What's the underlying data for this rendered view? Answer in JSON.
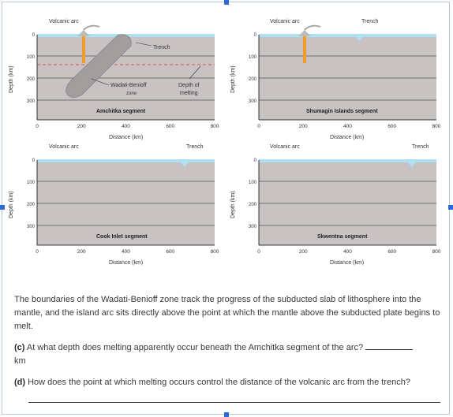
{
  "panels": [
    {
      "volcanic": "Volcanic arc",
      "trench": "Trench",
      "segment": "Amchitka segment",
      "wb_label_1": "Wadati-Benioff",
      "wb_label_2": "zone",
      "dm_label_1": "Depth of",
      "dm_label_2": "melting"
    },
    {
      "volcanic": "Volcanic arc",
      "trench": "Trench",
      "segment": "Shumagin Islands segment"
    },
    {
      "volcanic": "Volcanic arc",
      "trench": "Trench",
      "segment": "Cook Inlet segment"
    },
    {
      "volcanic": "Volcanic arc",
      "trench": "Trench",
      "segment": "Skwentna segment"
    }
  ],
  "axes": {
    "y_ticks": [
      "0",
      "100",
      "200",
      "300"
    ],
    "x_ticks": [
      "0",
      "200",
      "400",
      "600",
      "800"
    ],
    "ylabel": "Depth (km)",
    "xlabel": "Distance (km)"
  },
  "text": {
    "paragraph": "The boundaries of the Wadati-Benioff zone track the progress of the subducted slab of lithosphere into the mantle, and the island arc sits directly above the point at which the mantle above the subducted plate begins to melt.",
    "qc_label": "(c)",
    "qc_text": "At what depth does melting apparently occur beneath the Amchitka segment of the arc?",
    "qc_unit": "km",
    "qd_label": "(d)",
    "qd_text": "How does the point at which melting occurs control the distance of the volcanic arc from the trench?"
  },
  "colors": {
    "mantle": "#c8c2c2",
    "ocean": "#aee0f2",
    "slab": "#a39e9e",
    "magma": "#f29a2e",
    "melt_line": "#e05050"
  }
}
